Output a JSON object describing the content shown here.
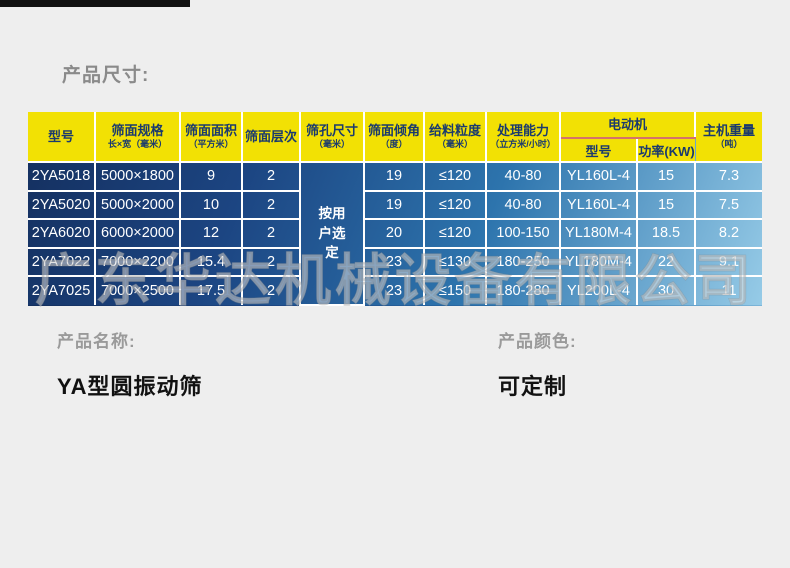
{
  "page": {
    "section_title": "产品尺寸:",
    "watermark": "广东华达机械设备有限公司",
    "background_color": "#eeeeee",
    "header_accent_color": "#f2e104",
    "header_text_color": "#1a3a6e",
    "body_gradient": [
      "#142f5e",
      "#2d74ad",
      "#96cbe7"
    ]
  },
  "table": {
    "columns": [
      {
        "label": "型号",
        "sub": ""
      },
      {
        "label": "筛面规格",
        "sub": "长×宽（毫米）"
      },
      {
        "label": "筛面面积",
        "sub": "（平方米）"
      },
      {
        "label": "筛面层次",
        "sub": ""
      },
      {
        "label": "筛孔尺寸",
        "sub": "（毫米）"
      },
      {
        "label": "筛面倾角",
        "sub": "（度）"
      },
      {
        "label": "给料粒度",
        "sub": "（毫米）"
      },
      {
        "label": "处理能力",
        "sub": "（立方米/小时）"
      },
      {
        "label": "主机重量",
        "sub": "（吨）"
      }
    ],
    "motor_group": {
      "label": "电动机",
      "children": [
        {
          "label": "型号"
        },
        {
          "label": "功率(KW)"
        }
      ]
    },
    "merged_cell": {
      "column_index": 4,
      "text": "按用\n户选\n定"
    },
    "rows": [
      [
        "2YA5018",
        "5000×1800",
        "9",
        "2",
        "19",
        "≤120",
        "40-80",
        "YL160L-4",
        "15",
        "7.3"
      ],
      [
        "2YA5020",
        "5000×2000",
        "10",
        "2",
        "19",
        "≤120",
        "40-80",
        "YL160L-4",
        "15",
        "7.5"
      ],
      [
        "2YA6020",
        "6000×2000",
        "12",
        "2",
        "20",
        "≤120",
        "100-150",
        "YL180M-4",
        "18.5",
        "8.2"
      ],
      [
        "2YA7022",
        "7000×2200",
        "15.4",
        "2",
        "23",
        "≤130",
        "180-250",
        "YL180M-4",
        "22",
        "9.1"
      ],
      [
        "2YA7025",
        "7000×2500",
        "17.5",
        "2",
        "23",
        "≤150",
        "180-280",
        "YL200L-4",
        "30",
        "11"
      ]
    ]
  },
  "footer": {
    "name_label": "产品名称:",
    "name_value": "YA型圆振动筛",
    "color_label": "产品颜色:",
    "color_value": "可定制"
  }
}
